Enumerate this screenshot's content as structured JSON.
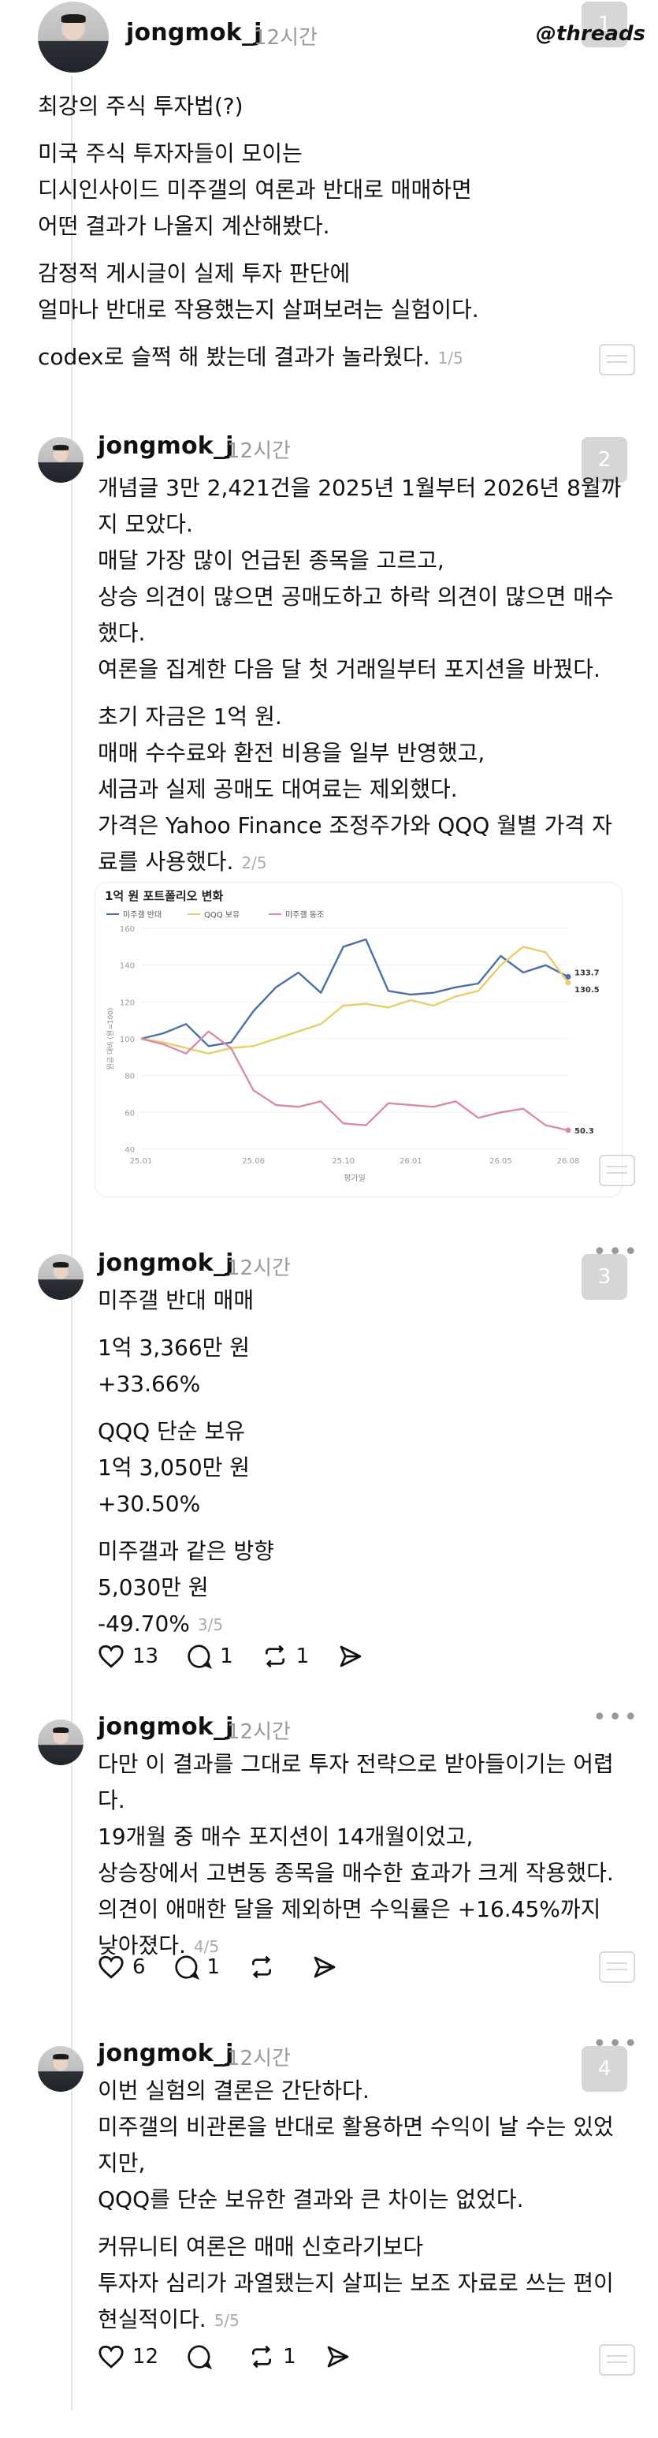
{
  "app": {
    "logo": "threads"
  },
  "posts": [
    {
      "username": "jongmok_j",
      "time": "12시간",
      "badge": "1",
      "lines": [
        "최강의 주식 투자법(?)",
        "미국 주식 투자자들이 모이는",
        "디시인사이드 미주갤의 여론과 반대로 매매하면",
        "어떤 결과가 나올지 계산해봤다.",
        "감정적 게시글이 실제 투자 판단에",
        "얼마나 반대로 작용했는지 살펴보려는 실험이다.",
        "codex로 슬쩍 해 봤는데 결과가 놀라웠다."
      ],
      "counter": "1/5"
    },
    {
      "username": "jongmok_j",
      "time": "12시간",
      "badge": "2",
      "lines": [
        "개념글 3만 2,421건을 2025년 1월부터 2026년 8월까",
        "지 모았다.",
        "매달 가장 많이 언급된 종목을 고르고,",
        "상승 의견이 많으면 공매도하고 하락 의견이 많으면 매수",
        "했다.",
        "여론을 집계한 다음 달 첫 거래일부터 포지션을 바꿨다.",
        "초기 자금은 1억 원.",
        "매매 수수료와 환전 비용을 일부 반영했고,",
        "세금과 실제 공매도 대여료는 제외했다.",
        "가격은 Yahoo Finance 조정주가와 QQQ 월별 가격 자",
        "료를 사용했다."
      ],
      "counter": "2/5"
    },
    {
      "username": "jongmok_j",
      "time": "12시간",
      "badge": "3",
      "lines": [
        "미주갤 반대 매매",
        "1억 3,366만 원",
        "+33.66%",
        "QQQ 단순 보유",
        "1억 3,050만 원",
        "+30.50%",
        "미주갤과 같은 방향",
        "5,030만 원",
        "-49.70%"
      ],
      "counter": "3/5",
      "likes": "13",
      "comments": "1",
      "reposts": "1"
    },
    {
      "username": "jongmok_j",
      "time": "12시간",
      "lines": [
        "다만 이 결과를 그대로 투자 전략으로 받아들이기는 어렵",
        "다.",
        "19개월 중 매수 포지션이 14개월이었고,",
        "상승장에서 고변동 종목을 매수한 효과가 크게 작용했다.",
        "의견이 애매한 달을 제외하면 수익률은 +16.45%까지",
        "낮아졌다."
      ],
      "counter": "4/5",
      "likes": "6",
      "comments": "1",
      "reposts": ""
    },
    {
      "username": "jongmok_j",
      "time": "12시간",
      "badge": "4",
      "lines": [
        "이번 실험의 결론은 간단하다.",
        "미주갤의 비관론을 반대로 활용하면 수익이 날 수는 있었",
        "지만,",
        "QQQ를 단순 보유한 결과와 큰 차이는 없었다.",
        "커뮤니티 여론은 매매 신호라기보다",
        "투자자 심리가 과열됐는지 살피는 보조 자료로 쓰는 편이",
        "현실적이다."
      ],
      "counter": "5/5",
      "likes": "12",
      "comments": "",
      "reposts": "1"
    }
  ],
  "chart_data": {
    "type": "line",
    "title": "1억 원 포트폴리오 변화",
    "xlabel": "평가일",
    "ylabel": "원금 대비 (원=100)",
    "x": [
      "25.01",
      "25.02",
      "25.03",
      "25.04",
      "25.05",
      "25.06",
      "25.07",
      "25.08",
      "25.09",
      "25.10",
      "25.11",
      "25.12",
      "26.01",
      "26.02",
      "26.03",
      "26.04",
      "26.05",
      "26.06",
      "26.07",
      "26.08"
    ],
    "x_ticks": [
      "25.01",
      "25.06",
      "25.10",
      "26.01",
      "26.05",
      "26.08"
    ],
    "ylim": [
      40,
      160
    ],
    "y_ticks": [
      40,
      60,
      80,
      100,
      120,
      140,
      160
    ],
    "legend_position": "top-left",
    "grid": true,
    "series": [
      {
        "name": "미주갤 반대",
        "color": "#4c6fa8",
        "values": [
          100,
          103,
          108,
          96,
          98,
          115,
          128,
          136,
          125,
          150,
          154,
          126,
          124,
          125,
          128,
          130,
          145,
          136,
          140,
          133.7
        ],
        "end_label": "133.7"
      },
      {
        "name": "QQQ 보유",
        "color": "#e8cd6a",
        "values": [
          100,
          98,
          95,
          92,
          95,
          96,
          100,
          104,
          108,
          118,
          119,
          117,
          121,
          118,
          123,
          126,
          140,
          150,
          147,
          130.5
        ],
        "end_label": "130.5"
      },
      {
        "name": "미주갤 동조",
        "color": "#d98aa8",
        "values": [
          100,
          97,
          92,
          104,
          95,
          72,
          64,
          63,
          66,
          54,
          53,
          65,
          64,
          63,
          66,
          57,
          60,
          62,
          53,
          50.3
        ],
        "end_label": "50.3"
      }
    ]
  }
}
